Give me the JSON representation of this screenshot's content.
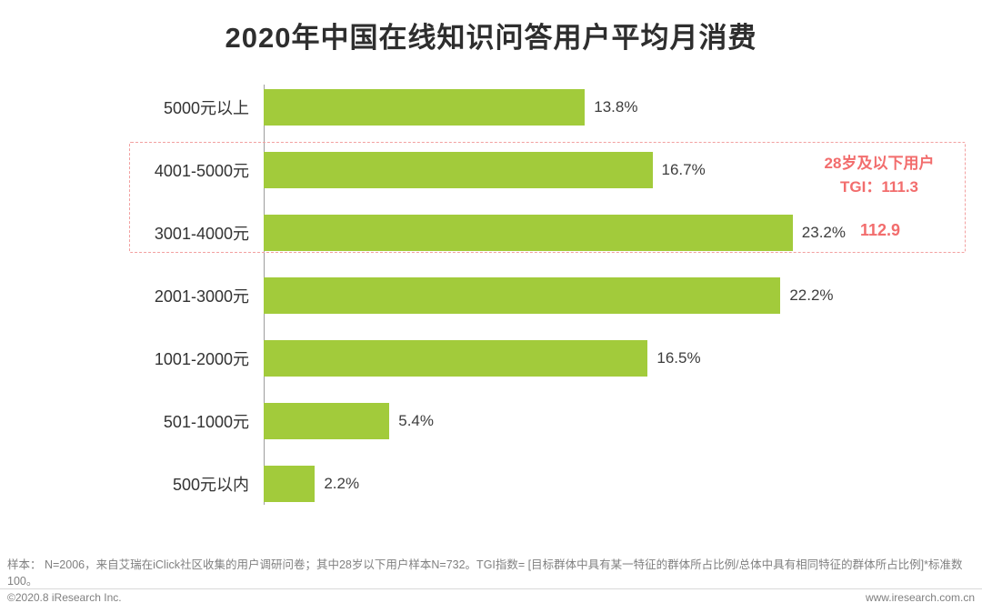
{
  "title": "2020年中国在线知识问答用户平均月消费",
  "chart_data": {
    "type": "bar",
    "orientation": "horizontal",
    "title": "2020年中国在线知识问答用户平均月消费",
    "categories": [
      "5000元以上",
      "4001-5000元",
      "3001-4000元",
      "2001-3000元",
      "1001-2000元",
      "501-1000元",
      "500元以内"
    ],
    "values": [
      13.8,
      16.7,
      23.2,
      22.2,
      16.5,
      5.4,
      2.2
    ],
    "value_labels": [
      "13.8%",
      "16.7%",
      "23.2%",
      "22.2%",
      "16.5%",
      "5.4%",
      "2.2%"
    ],
    "xlim": [
      0,
      25
    ],
    "grid": false,
    "legend": "none",
    "bar_color": "#a2cb3b",
    "annotation": {
      "highlighted_categories": [
        "4001-5000元",
        "3001-4000元"
      ],
      "line1": "28岁及以下用户",
      "line2": "TGI：111.3",
      "value2": "112.9",
      "color": "#f26d6d"
    }
  },
  "footnote": "样本： N=2006，来自艾瑞在iClick社区收集的用户调研问卷；其中28岁以下用户样本N=732。TGI指数= [目标群体中具有某一特征的群体所占比例/总体中具有相同特征的群体所占比例]*标准数100。",
  "footer": {
    "copyright": "©2020.8 iResearch Inc.",
    "website": "www.iresearch.com.cn"
  }
}
